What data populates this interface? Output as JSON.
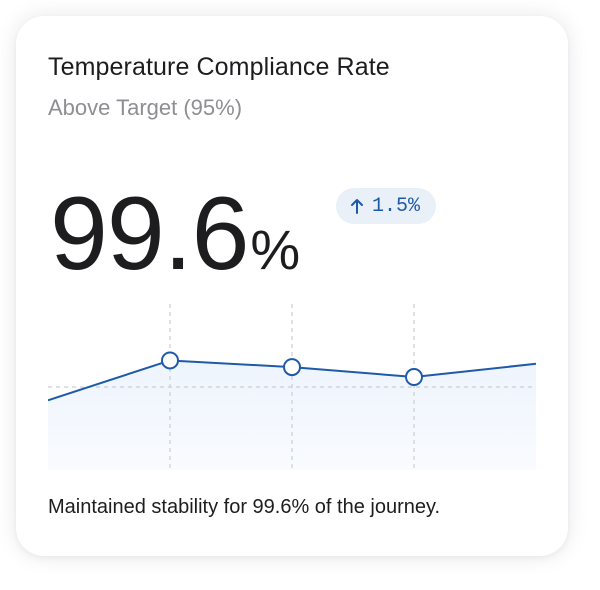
{
  "card": {
    "title": "Temperature Compliance Rate",
    "subtitle": "Above Target (95%)",
    "value": "99.6",
    "unit": "%",
    "delta": "1.5%",
    "delta_direction": "up",
    "delta_icon": "arrow-up-icon",
    "footer": "Maintained stability for 99.6% of the journey."
  },
  "colors": {
    "accent": "#1f5aa8",
    "badge_bg": "#e9f0f8",
    "area_fill": "#eef4fd",
    "grid": "#c9ced8",
    "text": "#1d1d1f",
    "muted": "#8e8e93"
  },
  "chart_data": {
    "type": "area",
    "points": [
      {
        "x": 0,
        "y": 42
      },
      {
        "x": 1,
        "y": 66
      },
      {
        "x": 2,
        "y": 62
      },
      {
        "x": 3,
        "y": 56
      },
      {
        "x": 4,
        "y": 64
      }
    ],
    "markers_at": [
      1,
      2,
      3
    ],
    "ylim": [
      0,
      100
    ],
    "grid": true,
    "title": "",
    "xlabel": "",
    "ylabel": ""
  }
}
